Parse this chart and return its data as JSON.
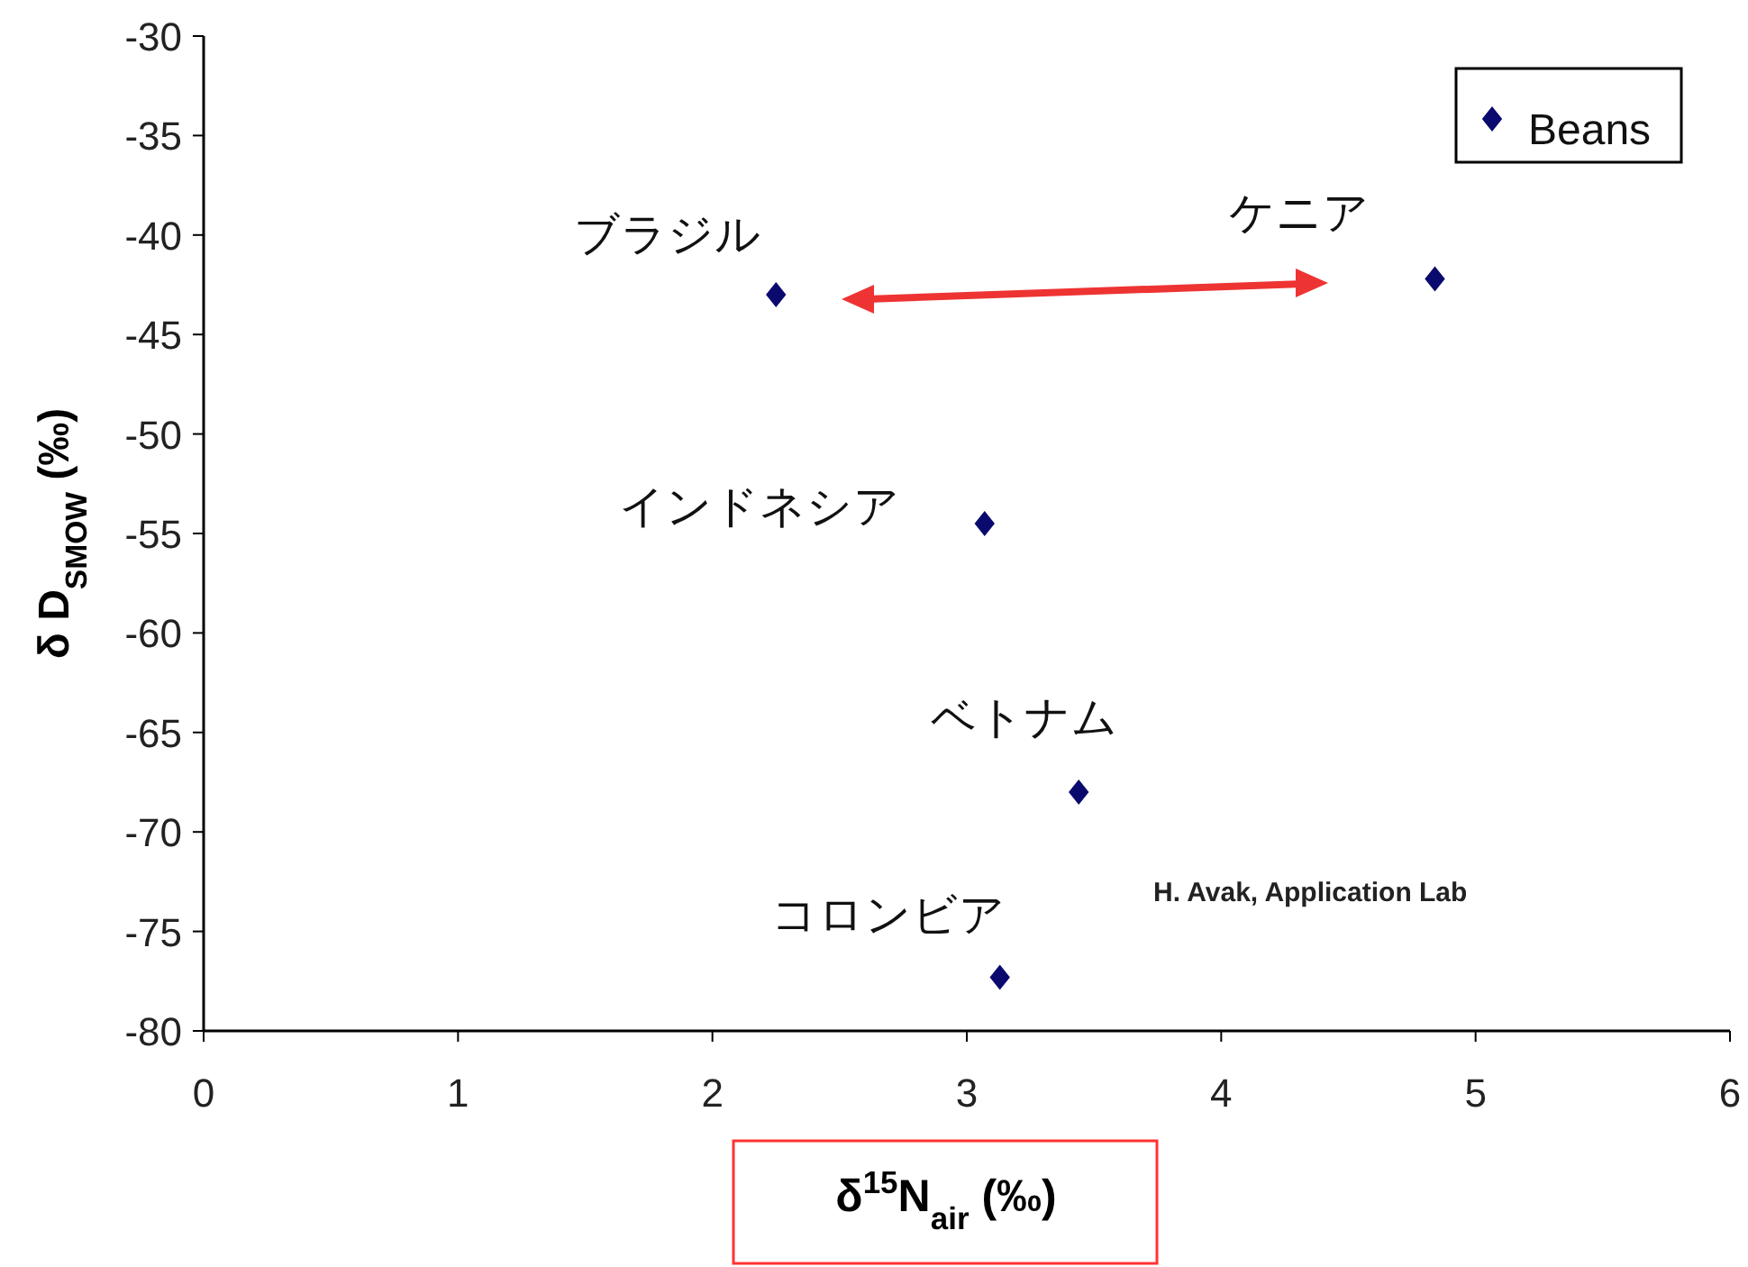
{
  "chart_data": {
    "type": "scatter",
    "xlabel": "δ$^{15}$N$_{air}$ (‰)",
    "ylabel": "δ D$_{SMOW}$ (‰)",
    "x": [
      2.25,
      4.84,
      3.07,
      3.44,
      3.13
    ],
    "series": [
      {
        "name": "Beans",
        "color": "#0a0a6e",
        "values": [
          -43.0,
          -42.2,
          -54.5,
          -68.0,
          -77.3
        ]
      }
    ],
    "xlim": [
      0,
      6
    ],
    "ylim": [
      -80,
      -30
    ],
    "xticks": [
      0,
      1,
      2,
      3,
      4,
      5,
      6
    ],
    "yticks": [
      -80,
      -75,
      -70,
      -65,
      -60,
      -55,
      -50,
      -45,
      -40,
      -35,
      -30
    ],
    "marker": "diamond",
    "legend": "top right",
    "annotations": [
      {
        "text": "ブラジル",
        "x": 2.25,
        "y": -43.0
      },
      {
        "text": "ケニア",
        "x": 4.84,
        "y": -42.2
      },
      {
        "text": "インドネシア",
        "x": 3.07,
        "y": -54.5
      },
      {
        "text": "ベトナム",
        "x": 3.44,
        "y": -68.0
      },
      {
        "text": "コロンビア",
        "x": 3.13,
        "y": -77.3
      },
      "H. Avak, Application Lab"
    ]
  }
}
